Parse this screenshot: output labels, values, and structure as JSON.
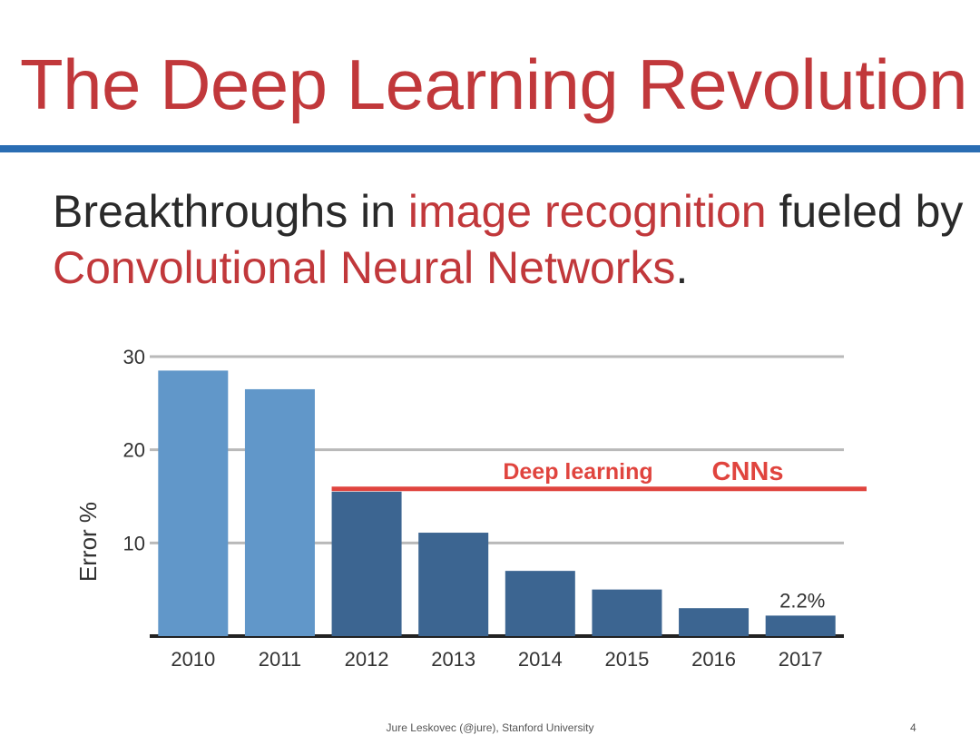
{
  "slide": {
    "title": "The Deep Learning Revolution",
    "subtitle": {
      "part1": "Breakthroughs in ",
      "highlight1": "image recognition",
      "part2": " fueled by ",
      "highlight2": "Convolutional Neural Networks",
      "part3": "."
    },
    "footer": "Jure Leskovec (@jure), Stanford University",
    "page_number": "4"
  },
  "colors": {
    "title": "#c1383b",
    "rule": "#2a6db3",
    "bar_light": "#6197c9",
    "bar_dark": "#3c6591",
    "deep_learning_line": "#e0443e"
  },
  "chart_data": {
    "type": "bar",
    "categories": [
      "2010",
      "2011",
      "2012",
      "2013",
      "2014",
      "2015",
      "2016",
      "2017"
    ],
    "values": [
      28.5,
      26.5,
      15.5,
      11.1,
      7.0,
      5.0,
      3.0,
      2.2
    ],
    "ylabel": "Error %",
    "xlabel": "",
    "ylim": [
      0,
      30
    ],
    "yticks": [
      10,
      20,
      30
    ],
    "grid": true,
    "series_colors": [
      "light",
      "light",
      "dark",
      "dark",
      "dark",
      "dark",
      "dark",
      "dark"
    ],
    "annotations": {
      "deep_learning_label": "Deep learning",
      "cnn_label": "CNNs",
      "reference_line_value": 15.8,
      "last_bar_label": "2.2%"
    }
  }
}
